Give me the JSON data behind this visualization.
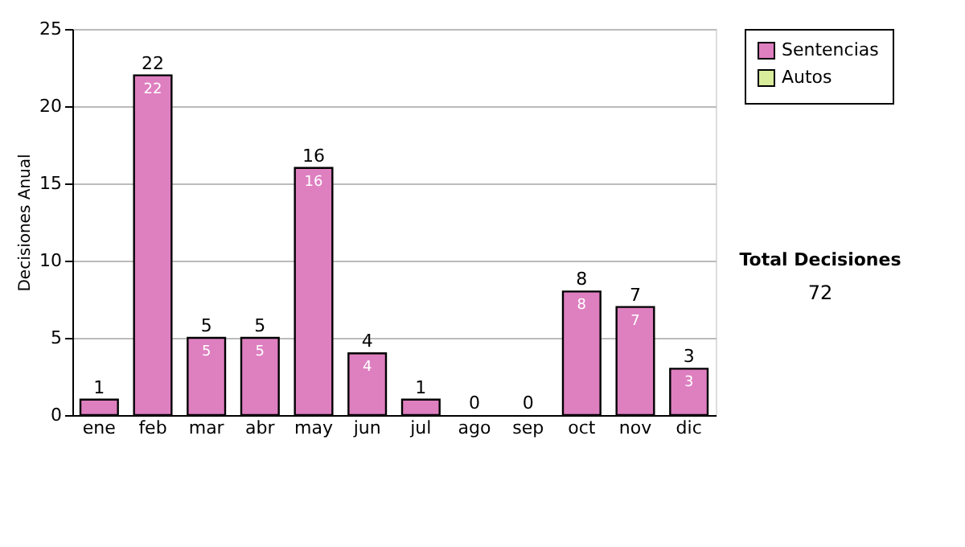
{
  "chart_data": {
    "type": "bar",
    "ylabel": "Decisiones Anual",
    "categories": [
      "ene",
      "feb",
      "mar",
      "abr",
      "may",
      "jun",
      "jul",
      "ago",
      "sep",
      "oct",
      "nov",
      "dic"
    ],
    "series": [
      {
        "name": "Sentencias",
        "color": "#de7fc0",
        "values": [
          1,
          22,
          5,
          5,
          16,
          4,
          1,
          0,
          0,
          8,
          7,
          3
        ],
        "value_labels": [
          null,
          "22",
          "5",
          "5",
          "16",
          "4",
          null,
          null,
          null,
          "8",
          "7",
          "3"
        ]
      },
      {
        "name": "Autos",
        "color": "#d8ec9c",
        "values": [
          0,
          0,
          0,
          0,
          0,
          0,
          0,
          0,
          0,
          0,
          0,
          0
        ]
      }
    ],
    "stacked": true,
    "totals": [
      "1",
      "22",
      "5",
      "5",
      "16",
      "4",
      "1",
      "0",
      "0",
      "8",
      "7",
      "3"
    ],
    "ylim": [
      0,
      25
    ],
    "yticks": [
      0,
      5,
      10,
      15,
      20,
      25
    ],
    "grid": "y",
    "legend": "right",
    "annotations": [
      "Total Decisiones",
      "72"
    ]
  }
}
